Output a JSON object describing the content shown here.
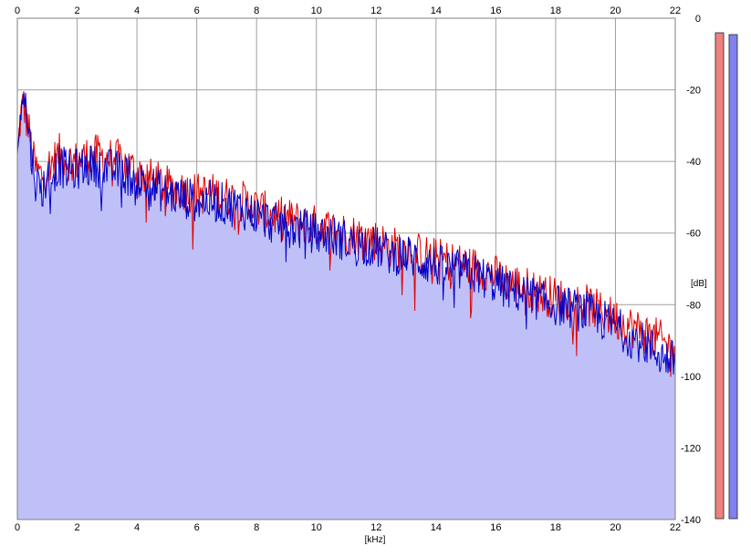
{
  "chart_data": {
    "type": "line",
    "xlabel": "[kHz]",
    "ylabel": "[dB]",
    "xlim": [
      0,
      22
    ],
    "ylim": [
      -140,
      0
    ],
    "x_ticks": [
      0,
      2,
      4,
      6,
      8,
      10,
      12,
      14,
      16,
      18,
      20,
      22
    ],
    "y_ticks": [
      0,
      -20,
      -40,
      -60,
      -80,
      -100,
      -120,
      -140
    ],
    "x_tick_labels": [
      "0",
      "2",
      "4",
      "6",
      "8",
      "10",
      "12",
      "14",
      "16",
      "18",
      "20",
      "22"
    ],
    "y_tick_labels": [
      "0",
      "-20",
      "-40",
      "-60",
      "-80",
      "-100",
      "-120",
      "-140"
    ],
    "grid": true,
    "series": [
      {
        "color": "#e00000",
        "x": [
          0,
          0.1,
          0.2,
          0.3,
          0.4,
          0.5,
          0.6,
          0.8,
          1.0,
          1.2,
          1.4,
          1.6,
          1.8,
          2.0,
          2.5,
          3.0,
          3.5,
          4.0,
          4.5,
          5.0,
          5.5,
          6.0,
          6.5,
          7.0,
          7.5,
          8.0,
          8.5,
          9.0,
          9.5,
          10.0,
          10.5,
          11.0,
          11.5,
          12.0,
          12.5,
          13.0,
          13.5,
          14.0,
          14.5,
          15.0,
          15.5,
          16.0,
          16.5,
          17.0,
          17.5,
          18.0,
          18.5,
          19.0,
          19.5,
          20.0,
          20.5,
          21.0,
          21.5,
          22.0
        ],
        "values": [
          -40,
          -28,
          -24,
          -28,
          -32,
          -38,
          -42,
          -44,
          -42,
          -40,
          -38,
          -39,
          -40,
          -40,
          -38,
          -39,
          -40,
          -43,
          -45,
          -47,
          -48,
          -49,
          -49,
          -50,
          -51,
          -53,
          -55,
          -56,
          -57,
          -58,
          -59,
          -60,
          -61,
          -62,
          -64,
          -64,
          -66,
          -67,
          -68,
          -69,
          -70,
          -72,
          -74,
          -75,
          -77,
          -78,
          -79,
          -80,
          -82,
          -84,
          -86,
          -88,
          -90,
          -93
        ]
      },
      {
        "color": "#0000c8",
        "fill": "#c0c0f8",
        "x": [
          0,
          0.1,
          0.2,
          0.3,
          0.4,
          0.5,
          0.6,
          0.8,
          1.0,
          1.2,
          1.4,
          1.6,
          1.8,
          2.0,
          2.5,
          3.0,
          3.5,
          4.0,
          4.5,
          5.0,
          5.5,
          6.0,
          6.5,
          7.0,
          7.5,
          8.0,
          8.5,
          9.0,
          9.5,
          10.0,
          10.5,
          11.0,
          11.5,
          12.0,
          12.5,
          13.0,
          13.5,
          14.0,
          14.5,
          15.0,
          15.5,
          16.0,
          16.5,
          17.0,
          17.5,
          18.0,
          18.5,
          19.0,
          19.5,
          20.0,
          20.5,
          21.0,
          21.5,
          22.0
        ],
        "values": [
          -42,
          -24,
          -18,
          -26,
          -33,
          -40,
          -45,
          -48,
          -45,
          -43,
          -41,
          -42,
          -43,
          -42,
          -41,
          -42,
          -43,
          -45,
          -47,
          -49,
          -50,
          -51,
          -51,
          -52,
          -53,
          -55,
          -57,
          -58,
          -59,
          -60,
          -61,
          -62,
          -63,
          -64,
          -66,
          -66,
          -68,
          -69,
          -70,
          -71,
          -72,
          -74,
          -76,
          -77,
          -79,
          -80,
          -81,
          -82,
          -84,
          -86,
          -89,
          -91,
          -94,
          -96
        ]
      }
    ]
  },
  "meters": {
    "left_color": "#f08080",
    "right_color": "#8080f0"
  }
}
